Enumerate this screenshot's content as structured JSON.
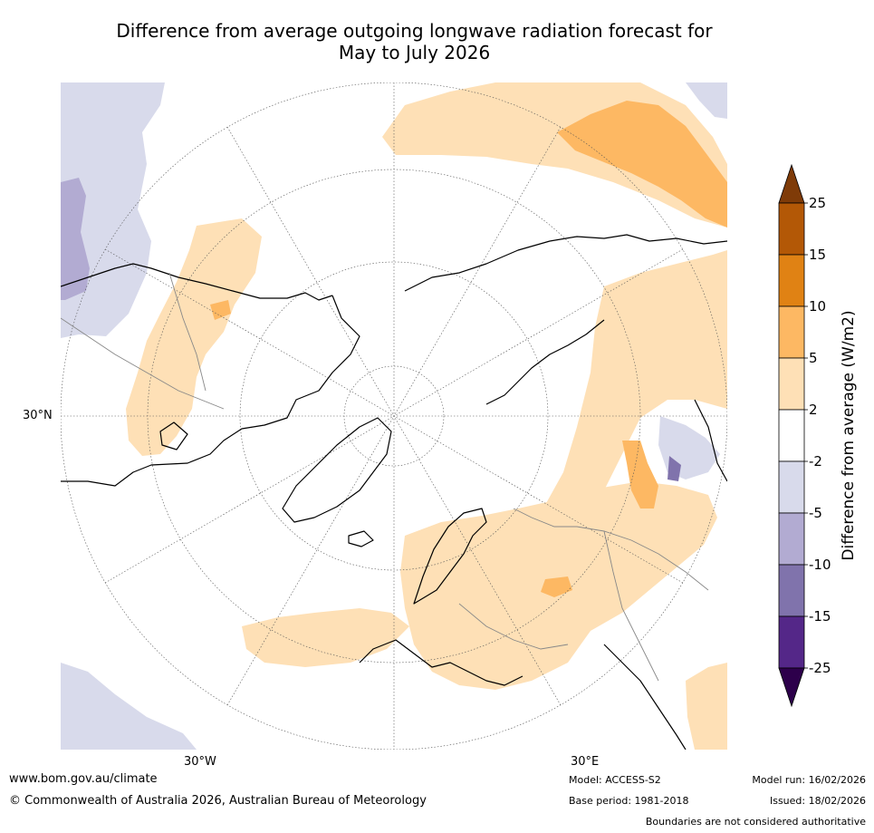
{
  "title_line1": "Difference from average outgoing longwave radiation forecast for",
  "title_line2": "May to July 2026",
  "map": {
    "lat_label": "30°N",
    "lon_label_west": "30°W",
    "lon_label_east": "30°E"
  },
  "colorbar": {
    "label": "Difference from average (W/m2)",
    "ticks": [
      "25",
      "15",
      "10",
      "5",
      "2",
      "-2",
      "-5",
      "-10",
      "-15",
      "-25"
    ],
    "colors": {
      "above_max": "#7f3b08",
      "c15_25": "#b35806",
      "c10_15": "#e08214",
      "c5_10": "#fdb863",
      "c2_5": "#fee0b6",
      "neutral": "#ffffff",
      "cm5_m2": "#d8daeb",
      "cm10_m5": "#b2abd2",
      "cm15_m10": "#8073ac",
      "cm25_m15": "#542788",
      "below_min": "#2d004b"
    }
  },
  "footer": {
    "website": "www.bom.gov.au/climate",
    "copyright": "© Commonwealth of Australia 2026, Australian Bureau of Meteorology",
    "model": "Model: ACCESS-S2",
    "base_period": "Base period: 1981-2018",
    "model_run": "Model run: 16/02/2026",
    "issued": "Issued: 18/02/2026",
    "disclaimer": "Boundaries are not considered authoritative"
  }
}
